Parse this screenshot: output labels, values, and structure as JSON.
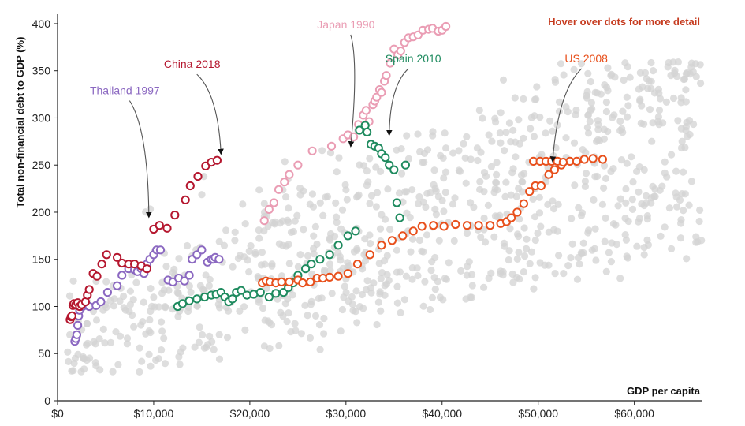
{
  "hint": "Hover over dots for more detail",
  "colors": {
    "background": "#d3d3d3",
    "china": "#b5172f",
    "thailand": "#8b68c1",
    "japan": "#ea9db4",
    "spain": "#1f8b5f",
    "us": "#e8501c",
    "hint": "#c63b1f"
  },
  "chart_data": {
    "type": "scatter",
    "xlabel": "GDP per capita",
    "ylabel": "Total non-financial debt to GDP (%)",
    "xlim": [
      0,
      67000
    ],
    "ylim": [
      0,
      410
    ],
    "x_ticks": [
      0,
      10000,
      20000,
      30000,
      40000,
      50000,
      60000
    ],
    "x_tick_labels": [
      "$0",
      "$10,000",
      "$20,000",
      "$30,000",
      "$40,000",
      "$50,000",
      "$60,000"
    ],
    "y_ticks": [
      0,
      50,
      100,
      150,
      200,
      250,
      300,
      350,
      400
    ],
    "y_tick_labels": [
      "0",
      "50",
      "100",
      "150",
      "200",
      "250",
      "300",
      "350",
      "400"
    ],
    "grid": false,
    "background_cloud": "Gray dots for all other country-years (approx. 1000), spread from about ($1,000, 40%) to ($67,000, 350%)",
    "series": [
      {
        "name": "Thailand 1997",
        "color_key": "thailand",
        "label_pos": [
          7000,
          325
        ],
        "arrow_to": [
          9500,
          195
        ],
        "x": [
          1800,
          1900,
          2000,
          2100,
          2200,
          2300,
          2600,
          2900,
          3300,
          4000,
          4500,
          5200,
          6200,
          6700,
          7400,
          8000,
          8300,
          8700,
          9000,
          9300,
          9600,
          10000,
          10300,
          10700,
          11500,
          12000,
          12600,
          13200,
          13700,
          14000,
          14500,
          15000,
          15600,
          16000,
          16200,
          16400,
          16800
        ],
        "y": [
          63,
          66,
          70,
          80,
          90,
          96,
          100,
          103,
          100,
          101,
          105,
          115,
          122,
          133,
          140,
          139,
          137,
          140,
          135,
          145,
          150,
          155,
          160,
          160,
          128,
          126,
          130,
          127,
          133,
          150,
          155,
          160,
          147,
          150,
          150,
          152,
          150
        ]
      },
      {
        "name": "China 2018",
        "color_key": "china",
        "label_pos": [
          14000,
          353
        ],
        "arrow_to": [
          17000,
          262
        ],
        "x": [
          1300,
          1400,
          1500,
          1600,
          1700,
          1900,
          2100,
          2300,
          2500,
          2900,
          3100,
          3300,
          3700,
          4100,
          4600,
          5100,
          6200,
          6700,
          7400,
          8000,
          8700,
          9300,
          10000,
          10600,
          11400,
          12200,
          13300,
          13800,
          14600,
          15400,
          16000,
          16600
        ],
        "y": [
          86,
          89,
          90,
          101,
          103,
          102,
          104,
          100,
          102,
          105,
          112,
          118,
          135,
          132,
          145,
          155,
          152,
          146,
          145,
          145,
          143,
          140,
          182,
          186,
          183,
          197,
          213,
          228,
          238,
          249,
          253,
          255
        ]
      },
      {
        "name": "Japan 1990",
        "color_key": "japan",
        "label_pos": [
          30000,
          395
        ],
        "arrow_to": [
          30500,
          270
        ],
        "x": [
          21500,
          22000,
          22500,
          23000,
          23600,
          24100,
          25000,
          26500,
          28500,
          29700,
          30200,
          30800,
          31300,
          31800,
          32100,
          32400,
          32800,
          33000,
          33200,
          33500,
          33700,
          34000,
          34200,
          34600,
          35000,
          35400,
          35700,
          36100,
          36500,
          37000,
          37500,
          38000,
          38600,
          39000,
          39600,
          40000,
          40400
        ],
        "y": [
          191,
          203,
          210,
          224,
          232,
          240,
          250,
          265,
          270,
          278,
          282,
          280,
          293,
          303,
          308,
          296,
          314,
          318,
          322,
          330,
          327,
          339,
          345,
          358,
          373,
          367,
          371,
          380,
          385,
          386,
          388,
          393,
          394,
          395,
          392,
          393,
          397
        ]
      },
      {
        "name": "Spain 2010",
        "color_key": "spain",
        "label_pos": [
          37000,
          359
        ],
        "arrow_to": [
          34500,
          282
        ],
        "x": [
          12500,
          13000,
          13700,
          14500,
          15300,
          16000,
          16500,
          17000,
          17400,
          17800,
          18200,
          18600,
          19100,
          19700,
          20400,
          21100,
          22000,
          22700,
          23500,
          24000,
          24500,
          25000,
          25800,
          26400,
          27300,
          28300,
          29200,
          30200,
          31000,
          31400,
          32000,
          32200,
          32600,
          33000,
          33400,
          33700,
          34100,
          34500,
          35000,
          35300,
          35600,
          36200
        ],
        "y": [
          100,
          103,
          106,
          108,
          110,
          112,
          113,
          115,
          110,
          105,
          108,
          115,
          117,
          112,
          113,
          115,
          110,
          114,
          115,
          120,
          125,
          133,
          140,
          145,
          150,
          155,
          165,
          175,
          180,
          287,
          292,
          285,
          272,
          270,
          268,
          262,
          258,
          250,
          245,
          210,
          194,
          250
        ]
      },
      {
        "name": "US 2008",
        "color_key": "us",
        "label_pos": [
          55000,
          359
        ],
        "arrow_to": [
          51500,
          254
        ],
        "x": [
          21300,
          21700,
          22100,
          22700,
          23300,
          24100,
          25000,
          25500,
          26300,
          27000,
          27600,
          28300,
          29200,
          30200,
          31200,
          32500,
          33700,
          34800,
          35900,
          37000,
          37900,
          39100,
          40200,
          41400,
          42600,
          43800,
          45000,
          46100,
          46700,
          47200,
          47800,
          48500,
          49100,
          49700,
          50300,
          51100,
          51700,
          52400,
          53300,
          54000,
          54800,
          55700,
          56700
        ],
        "y": [
          125,
          127,
          126,
          125,
          126,
          126,
          128,
          125,
          126,
          130,
          130,
          131,
          132,
          135,
          145,
          155,
          165,
          170,
          175,
          180,
          185,
          186,
          185,
          187,
          186,
          186,
          186,
          188,
          190,
          194,
          200,
          209,
          222,
          228,
          228,
          240,
          245,
          250,
          254,
          254,
          256,
          257,
          256
        ]
      }
    ],
    "us_extra_points": [
      [
        49500,
        254
      ],
      [
        50200,
        254
      ],
      [
        50800,
        254
      ],
      [
        51400,
        254
      ],
      [
        52000,
        254
      ],
      [
        52600,
        253
      ]
    ]
  }
}
